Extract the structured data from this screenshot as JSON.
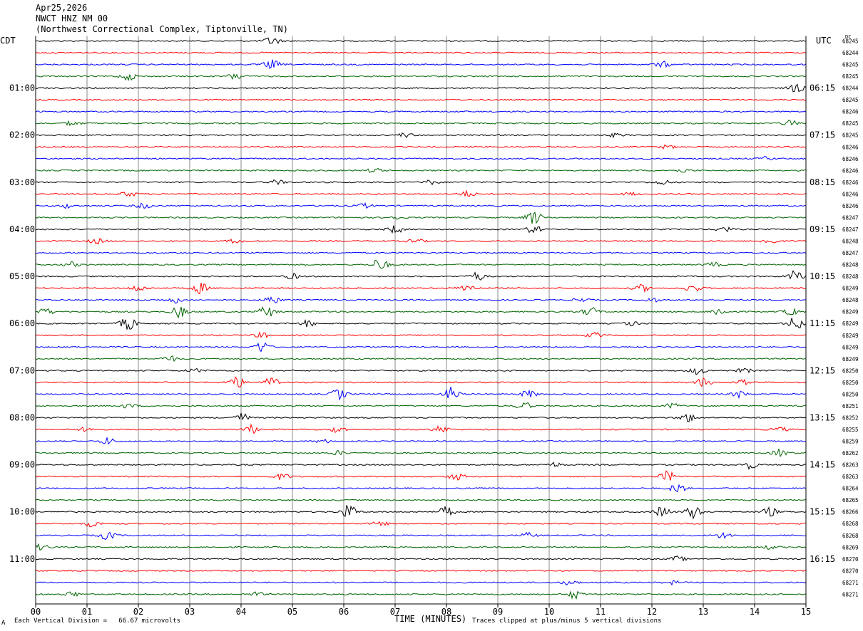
{
  "header": {
    "date": "Apr25,2026",
    "station": "NWCT HNZ NM 00",
    "location": "(Northwest Correctional Complex, Tiptonville, TN)"
  },
  "labels": {
    "left_tz": "CDT",
    "right_tz": "UTC",
    "dc_label": "DC",
    "xaxis_title": "TIME (MINUTES)",
    "footer_left": "Each Vertical Division =   66.67 microvolts",
    "footer_right": "Traces clipped at plus/minus 5 vertical divisions",
    "footer_mark": "A"
  },
  "colors": {
    "trace_cycle": [
      "#000000",
      "#ff0000",
      "#0000ff",
      "#006400"
    ],
    "grid": "#888888"
  },
  "chart_data": {
    "type": "line",
    "subtype": "helicorder",
    "xlabel": "TIME (MINUTES)",
    "xlim": [
      0,
      15
    ],
    "x_ticks": [
      "00",
      "01",
      "02",
      "03",
      "04",
      "05",
      "06",
      "07",
      "08",
      "09",
      "10",
      "11",
      "12",
      "13",
      "14",
      "15"
    ],
    "left_hour_labels": [
      "01:00",
      "02:00",
      "03:00",
      "04:00",
      "05:00",
      "06:00",
      "07:00",
      "08:00",
      "09:00",
      "10:00",
      "11:00"
    ],
    "right_hour_labels": [
      "06:15",
      "07:15",
      "08:15",
      "09:15",
      "10:15",
      "11:15",
      "12:15",
      "13:15",
      "14:15",
      "15:15",
      "16:15"
    ],
    "first_hour_label_line": 4,
    "lines_per_hour": 4,
    "minutes_per_line": 15,
    "dc_offsets": [
      68245,
      68244,
      68245,
      68245,
      68244,
      68245,
      68246,
      68245,
      68245,
      68246,
      68246,
      68246,
      68246,
      68246,
      68246,
      68247,
      68247,
      68248,
      68247,
      68248,
      68248,
      68249,
      68248,
      68249,
      68249,
      68249,
      68249,
      68249,
      68250,
      68250,
      68250,
      68251,
      68252,
      68255,
      68259,
      68262,
      68263,
      68263,
      68264,
      68265,
      68266,
      68268,
      68268,
      68269,
      68270,
      68270,
      68271,
      68271
    ],
    "grid": true,
    "events": [
      [
        [
          4.6,
          1.0
        ]
      ],
      [],
      [
        [
          4.6,
          1.1
        ],
        [
          12.2,
          0.7
        ]
      ],
      [
        [
          1.8,
          0.9
        ],
        [
          3.9,
          0.8
        ]
      ],
      [
        [
          14.8,
          1.0
        ]
      ],
      [],
      [],
      [
        [
          0.7,
          0.5
        ],
        [
          14.7,
          0.7
        ]
      ],
      [
        [
          7.2,
          0.5
        ],
        [
          11.3,
          0.4
        ]
      ],
      [
        [
          12.3,
          0.4
        ]
      ],
      [
        [
          14.2,
          0.4
        ]
      ],
      [
        [
          6.6,
          0.5
        ],
        [
          12.6,
          0.4
        ]
      ],
      [
        [
          4.7,
          0.5
        ],
        [
          7.7,
          0.5
        ],
        [
          12.2,
          0.6
        ]
      ],
      [
        [
          1.8,
          0.6
        ],
        [
          8.4,
          0.7
        ],
        [
          11.6,
          0.4
        ]
      ],
      [
        [
          0.6,
          0.5
        ],
        [
          2.1,
          0.6
        ],
        [
          6.4,
          0.5
        ]
      ],
      [
        [
          7.0,
          0.4
        ],
        [
          9.7,
          1.6
        ]
      ],
      [
        [
          7.0,
          0.9
        ],
        [
          9.7,
          0.9
        ],
        [
          13.4,
          0.7
        ]
      ],
      [
        [
          1.2,
          0.6
        ],
        [
          3.9,
          0.5
        ],
        [
          7.4,
          0.5
        ],
        [
          14.3,
          0.7
        ]
      ],
      [],
      [
        [
          0.7,
          0.6
        ],
        [
          6.7,
          1.5
        ],
        [
          13.2,
          0.5
        ]
      ],
      [
        [
          5.0,
          0.6
        ],
        [
          8.6,
          1.0
        ],
        [
          14.8,
          1.4
        ]
      ],
      [
        [
          2.0,
          0.7
        ],
        [
          3.2,
          1.3
        ],
        [
          8.4,
          1.0
        ],
        [
          11.8,
          0.8
        ],
        [
          12.8,
          0.9
        ]
      ],
      [
        [
          2.7,
          0.7
        ],
        [
          4.6,
          0.9
        ],
        [
          10.6,
          0.5
        ],
        [
          12.0,
          0.5
        ]
      ],
      [
        [
          0.2,
          0.8
        ],
        [
          2.8,
          1.3
        ],
        [
          4.5,
          1.4
        ],
        [
          10.8,
          1.1
        ],
        [
          13.3,
          0.9
        ],
        [
          14.7,
          0.8
        ]
      ],
      [
        [
          1.8,
          1.6
        ],
        [
          5.3,
          0.7
        ],
        [
          11.6,
          0.6
        ],
        [
          14.8,
          1.6
        ]
      ],
      [
        [
          4.4,
          0.6
        ],
        [
          10.9,
          0.6
        ]
      ],
      [
        [
          4.4,
          1.3
        ]
      ],
      [
        [
          2.6,
          0.7
        ]
      ],
      [
        [
          3.1,
          0.4
        ],
        [
          12.9,
          0.9
        ],
        [
          13.8,
          0.5
        ]
      ],
      [
        [
          3.9,
          1.4
        ],
        [
          4.6,
          1.2
        ],
        [
          13.0,
          1.0
        ],
        [
          13.8,
          0.8
        ]
      ],
      [
        [
          5.9,
          1.3
        ],
        [
          8.1,
          1.6
        ],
        [
          9.6,
          0.9
        ],
        [
          13.7,
          0.7
        ]
      ],
      [
        [
          1.8,
          0.5
        ],
        [
          9.5,
          0.9
        ],
        [
          12.4,
          0.6
        ]
      ],
      [
        [
          4.0,
          1.1
        ],
        [
          12.7,
          1.0
        ]
      ],
      [
        [
          1.0,
          0.5
        ],
        [
          4.2,
          1.0
        ],
        [
          5.9,
          0.8
        ],
        [
          7.9,
          0.8
        ],
        [
          14.5,
          0.5
        ]
      ],
      [
        [
          1.4,
          0.8
        ],
        [
          5.6,
          0.4
        ]
      ],
      [
        [
          5.9,
          0.5
        ],
        [
          14.5,
          0.9
        ]
      ],
      [
        [
          13.9,
          0.9
        ],
        [
          10.1,
          0.5
        ]
      ],
      [
        [
          4.8,
          0.7
        ],
        [
          8.2,
          0.8
        ],
        [
          12.3,
          1.2
        ]
      ],
      [
        [
          12.5,
          1.1
        ]
      ],
      [],
      [
        [
          6.1,
          1.6
        ],
        [
          8.0,
          1.2
        ],
        [
          12.2,
          1.2
        ],
        [
          12.8,
          1.6
        ],
        [
          14.3,
          1.0
        ]
      ],
      [
        [
          1.1,
          0.7
        ],
        [
          6.7,
          0.5
        ]
      ],
      [
        [
          1.4,
          1.0
        ],
        [
          9.6,
          0.6
        ],
        [
          13.4,
          0.7
        ]
      ],
      [
        [
          0.1,
          0.7
        ],
        [
          14.3,
          0.4
        ]
      ],
      [
        [
          12.5,
          0.6
        ]
      ],
      [],
      [
        [
          10.4,
          0.6
        ],
        [
          12.4,
          0.4
        ]
      ],
      [
        [
          0.7,
          0.6
        ],
        [
          4.3,
          0.5
        ],
        [
          10.5,
          1.0
        ]
      ]
    ]
  }
}
